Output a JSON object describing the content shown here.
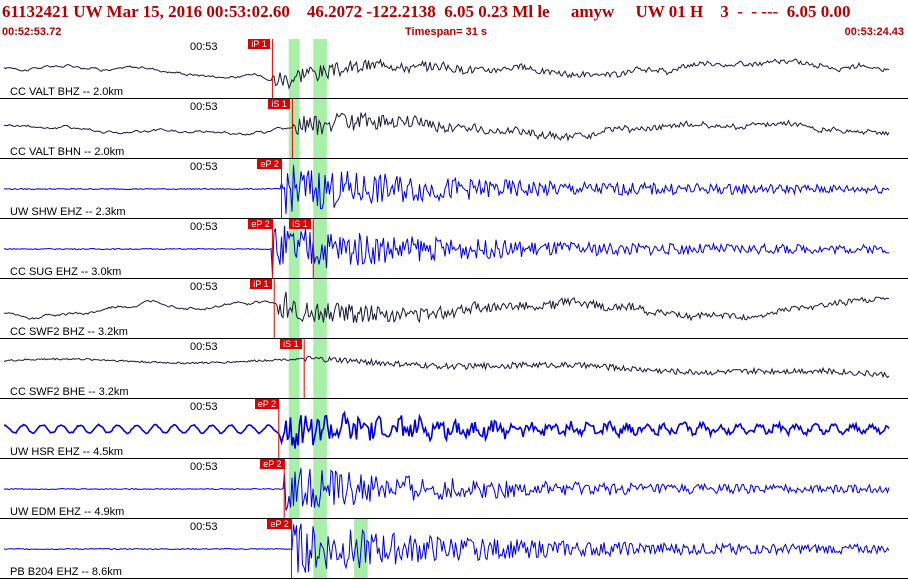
{
  "header": {
    "title": "61132421 UW Mar 15, 2016 00:53:02.60    46.2072 -122.2138  6.05 0.23 Ml le     amyw     UW 01 H    3  -  - ---  6.05 0.00",
    "start_time": "00:52:53.72",
    "timespan": "Timespan=  31 s",
    "end_time": "00:53:24.43"
  },
  "colors": {
    "header_red": "#b40000",
    "pick_red": "#e00000",
    "window_green": "#a8f0a8",
    "trace_black": "#1a1a3a",
    "trace_blue": "#0000dd"
  },
  "traces": [
    {
      "label": "CC VALT BHZ -- 2.0km",
      "time": "00:53",
      "color": "black",
      "amp": 0.55,
      "style": "lowfreq",
      "picks": [
        {
          "label": "iP 1",
          "pos": 0.3
        }
      ],
      "windows": [
        [
          0.318,
          0.33
        ],
        [
          0.345,
          0.36
        ]
      ]
    },
    {
      "label": "CC VALT BHN -- 2.0km",
      "time": "00:53",
      "color": "black",
      "amp": 0.6,
      "style": "lowfreq",
      "picks": [
        {
          "label": "iS 1",
          "pos": 0.322
        }
      ],
      "windows": [
        [
          0.318,
          0.33
        ],
        [
          0.345,
          0.36
        ]
      ]
    },
    {
      "label": "UW SHW EHZ -- 2.3km",
      "time": "00:53",
      "color": "blue",
      "amp": 0.9,
      "style": "highfreq",
      "picks": [
        {
          "label": "eP 2",
          "pos": 0.31
        }
      ],
      "windows": [
        [
          0.318,
          0.33
        ],
        [
          0.345,
          0.36
        ]
      ]
    },
    {
      "label": "CC SUG EHZ -- 3.0km",
      "time": "00:53",
      "color": "blue",
      "amp": 0.9,
      "style": "highfreq",
      "picks": [
        {
          "label": "eP 2",
          "pos": 0.3
        },
        {
          "label": "iS 1",
          "pos": 0.345
        }
      ],
      "windows": [
        [
          0.318,
          0.33
        ],
        [
          0.345,
          0.36
        ]
      ]
    },
    {
      "label": "CC SWF2 BHZ -- 3.2km",
      "time": "00:53",
      "color": "black",
      "amp": 0.8,
      "style": "lowfreq",
      "picks": [
        {
          "label": "iP 1",
          "pos": 0.302
        }
      ],
      "windows": [
        [
          0.318,
          0.33
        ],
        [
          0.345,
          0.36
        ]
      ]
    },
    {
      "label": "CC SWF2 BHE -- 3.2km",
      "time": "00:53",
      "color": "black",
      "amp": 0.5,
      "style": "ramp",
      "picks": [
        {
          "label": "iS 1",
          "pos": 0.335
        }
      ],
      "windows": [
        [
          0.318,
          0.33
        ],
        [
          0.345,
          0.36
        ]
      ]
    },
    {
      "label": "UW HSR EHZ -- 4.5km",
      "time": "00:53",
      "color": "blue",
      "amp": 0.9,
      "style": "thick",
      "picks": [
        {
          "label": "eP 2",
          "pos": 0.307
        }
      ],
      "windows": [
        [
          0.318,
          0.33
        ],
        [
          0.345,
          0.36
        ]
      ]
    },
    {
      "label": "UW EDM EHZ -- 4.9km",
      "time": "00:53",
      "color": "blue",
      "amp": 0.85,
      "style": "highfreq",
      "picks": [
        {
          "label": "eP 2",
          "pos": 0.313
        }
      ],
      "windows": [
        [
          0.318,
          0.33
        ],
        [
          0.345,
          0.36
        ]
      ]
    },
    {
      "label": "PB B204 EHZ -- 8.6km",
      "time": "00:53",
      "color": "blue",
      "amp": 0.95,
      "style": "highfreq",
      "picks": [
        {
          "label": "eP 2",
          "pos": 0.321
        }
      ],
      "windows": [
        [
          0.345,
          0.36
        ],
        [
          0.39,
          0.405
        ]
      ]
    }
  ]
}
